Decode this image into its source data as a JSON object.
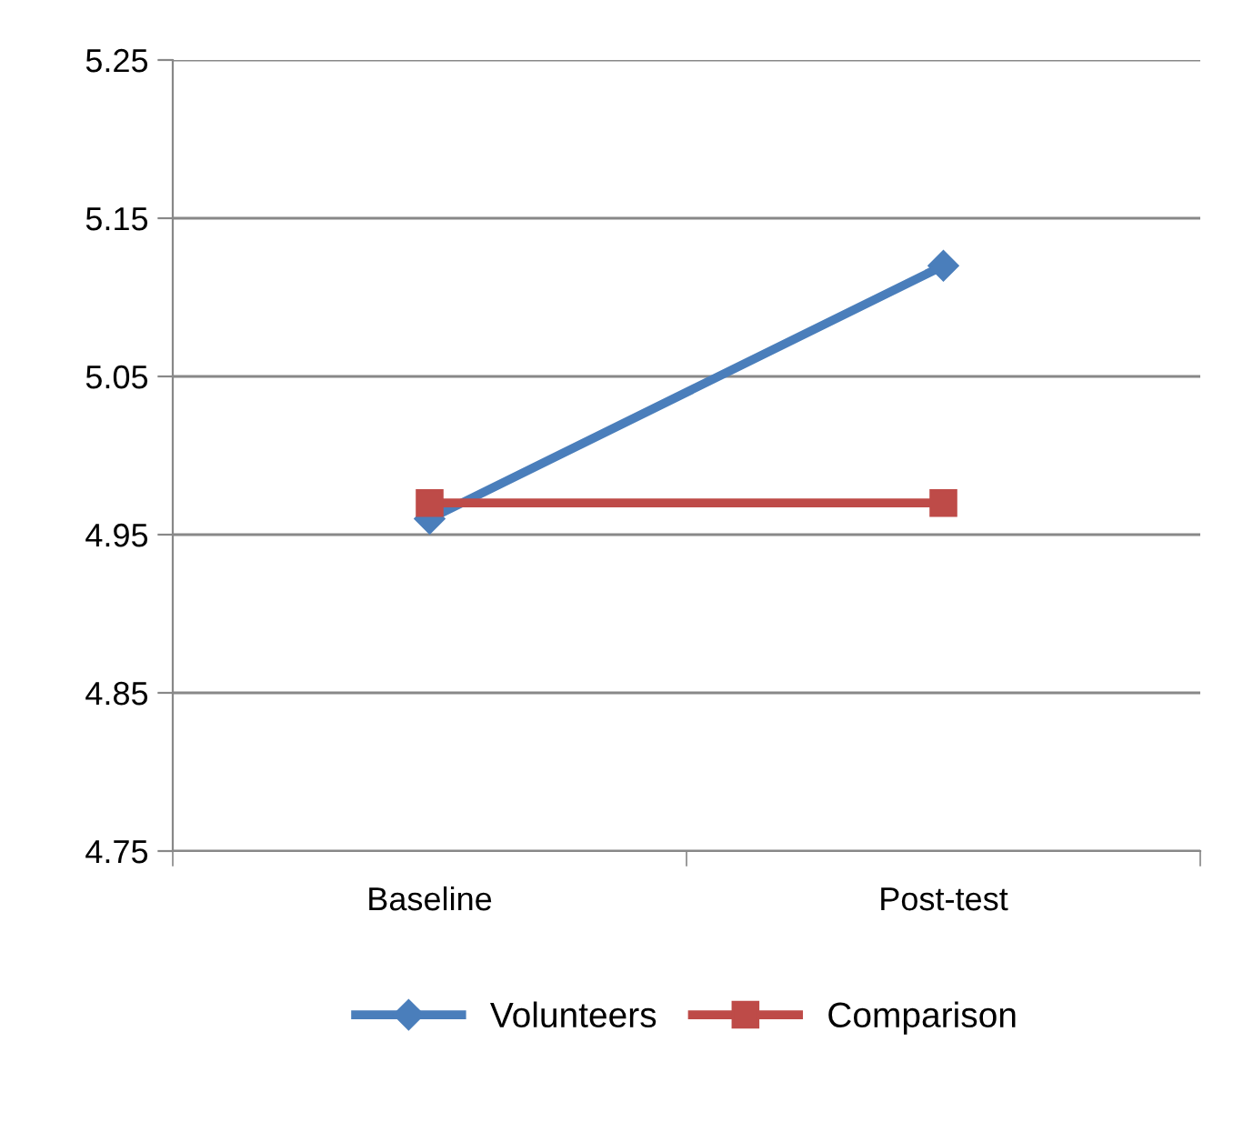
{
  "chart_data": {
    "type": "line",
    "categories": [
      "Baseline",
      "Post-test"
    ],
    "series": [
      {
        "name": "Volunteers",
        "color": "#4a7ebb",
        "values": [
          4.96,
          5.12
        ],
        "marker": "diamond"
      },
      {
        "name": "Comparison",
        "color": "#be4b48",
        "values": [
          4.97,
          4.97
        ],
        "marker": "square"
      }
    ],
    "ylim": [
      4.75,
      5.25
    ],
    "yticks": [
      4.75,
      4.85,
      4.95,
      5.05,
      5.15,
      5.25
    ],
    "grid": "y",
    "legend": "bottom",
    "line_style": "solid"
  }
}
